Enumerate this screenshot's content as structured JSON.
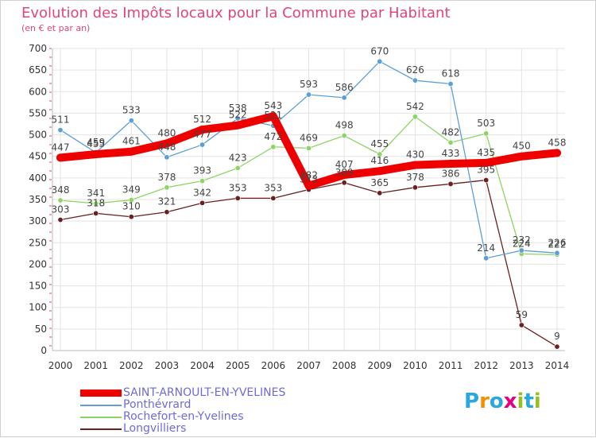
{
  "title": "Evolution des Impôts locaux pour la Commune par Habitant",
  "subtitle": "(en € et par an)",
  "logo": {
    "text": "Proxiti",
    "letters": [
      "P",
      "r",
      "o",
      "x",
      "i",
      "t",
      "i"
    ],
    "colors": [
      "#2aa7df",
      "#f39200",
      "#2aa7df",
      "#e6007e",
      "#95c11f",
      "#2aa7df",
      "#95c11f"
    ]
  },
  "chart_data": {
    "type": "line",
    "title": "Evolution des Impôts locaux pour la Commune par Habitant",
    "subtitle": "(en € et par an)",
    "xlabel": "",
    "ylabel": "",
    "x": [
      "2000",
      "2001",
      "2002",
      "2003",
      "2004",
      "2005",
      "2006",
      "2007",
      "2008",
      "2009",
      "2010",
      "2011",
      "2012",
      "2013",
      "2014"
    ],
    "ylim": [
      0,
      700
    ],
    "yticks": [
      0,
      50,
      100,
      150,
      200,
      250,
      300,
      350,
      400,
      450,
      500,
      550,
      600,
      650,
      700
    ],
    "grid": true,
    "legend_position": "bottom-left",
    "series": [
      {
        "name": "Longvilliers",
        "color": "#6b1f1f",
        "values": [
          303,
          318,
          310,
          321,
          342,
          353,
          353,
          373,
          389,
          365,
          378,
          386,
          395,
          59,
          9
        ],
        "labels": [
          "303",
          "318",
          "310",
          "321",
          "342",
          "353",
          "353",
          "373",
          "389",
          "365",
          "378",
          "386",
          "395",
          "59",
          "9"
        ]
      },
      {
        "name": "Rochefort-en-Yvelines",
        "color": "#8fd466",
        "values": [
          348,
          341,
          349,
          378,
          393,
          423,
          472,
          469,
          498,
          455,
          542,
          482,
          503,
          224,
          222
        ],
        "labels": [
          "348",
          "341",
          "349",
          "378",
          "393",
          "423",
          "472",
          "469",
          "498",
          "455",
          "542",
          "482",
          "503",
          "224",
          "222"
        ]
      },
      {
        "name": "Ponthévrard",
        "color": "#5c9fd6",
        "values": [
          511,
          459,
          533,
          448,
          477,
          538,
          521,
          593,
          586,
          670,
          626,
          618,
          214,
          232,
          226
        ],
        "labels": [
          "511",
          "459",
          "533",
          "448",
          "477",
          "538",
          "521",
          "593",
          "586",
          "670",
          "626",
          "618",
          "214",
          "232",
          "226"
        ]
      },
      {
        "name": "SAINT-ARNOULT-EN-YVELINES",
        "color": "#ee0000",
        "values": [
          447,
          455,
          461,
          480,
          512,
          522,
          543,
          382,
          407,
          416,
          430,
          433,
          435,
          450,
          458
        ],
        "labels": [
          "447",
          "455",
          "461",
          "480",
          "512",
          "522",
          "543",
          "382",
          "407",
          "416",
          "430",
          "433",
          "435",
          "450",
          "458"
        ]
      }
    ]
  }
}
